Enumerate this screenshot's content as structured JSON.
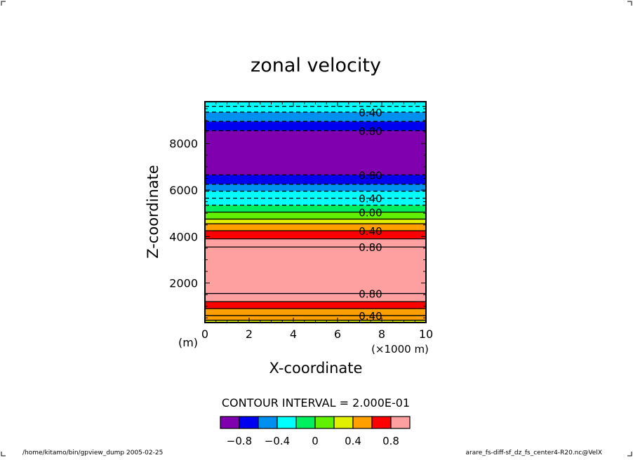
{
  "chart_data": {
    "type": "contour",
    "title": "zonal velocity",
    "xlabel": "X-coordinate",
    "ylabel": "Z-coordinate",
    "x_unit_label": "(m)",
    "x_scale_label": "(×1000 m)",
    "xlim": [
      0,
      10
    ],
    "ylim": [
      300,
      9800
    ],
    "xticks": [
      0,
      2,
      4,
      6,
      8,
      10
    ],
    "xtick_labels": [
      "0",
      "2",
      "4",
      "6",
      "8",
      "10"
    ],
    "yticks": [
      2000,
      4000,
      6000,
      8000
    ],
    "ytick_labels": [
      "2000",
      "4000",
      "6000",
      "8000"
    ],
    "contour_interval_text": "CONTOUR INTERVAL = 2.000E-01",
    "bands": [
      {
        "z0": 300,
        "z1": 400,
        "value": 0.3
      },
      {
        "z0": 400,
        "z1": 600,
        "value": 0.5
      },
      {
        "z0": 600,
        "z1": 900,
        "value": 0.5
      },
      {
        "z0": 900,
        "z1": 1200,
        "value": 0.7
      },
      {
        "z0": 1200,
        "z1": 1550,
        "value": 0.8
      },
      {
        "z0": 1550,
        "z1": 3550,
        "value": 0.9
      },
      {
        "z0": 3550,
        "z1": 3900,
        "value": 0.8
      },
      {
        "z0": 3900,
        "z1": 4250,
        "value": 0.7
      },
      {
        "z0": 4250,
        "z1": 4550,
        "value": 0.5
      },
      {
        "z0": 4550,
        "z1": 4750,
        "value": 0.3
      },
      {
        "z0": 4750,
        "z1": 5050,
        "value": 0.1
      },
      {
        "z0": 5050,
        "z1": 5350,
        "value": -0.1
      },
      {
        "z0": 5350,
        "z1": 5650,
        "value": -0.3
      },
      {
        "z0": 5650,
        "z1": 5950,
        "value": -0.4
      },
      {
        "z0": 5950,
        "z1": 6250,
        "value": -0.5
      },
      {
        "z0": 6250,
        "z1": 6650,
        "value": -0.7
      },
      {
        "z0": 6650,
        "z1": 8550,
        "value": -0.9
      },
      {
        "z0": 8550,
        "z1": 8950,
        "value": -0.7
      },
      {
        "z0": 8950,
        "z1": 9350,
        "value": -0.5
      },
      {
        "z0": 9350,
        "z1": 9800,
        "value": -0.3
      }
    ],
    "contour_lines": [
      {
        "z": 400,
        "dashed": false
      },
      {
        "z": 600,
        "dashed": false,
        "label": "0.40"
      },
      {
        "z": 900,
        "dashed": false
      },
      {
        "z": 1200,
        "dashed": false
      },
      {
        "z": 1550,
        "dashed": false,
        "label": "0.80"
      },
      {
        "z": 3550,
        "dashed": false,
        "label": "0.80"
      },
      {
        "z": 3900,
        "dashed": false
      },
      {
        "z": 4250,
        "dashed": false,
        "label": "0.40"
      },
      {
        "z": 4550,
        "dashed": false
      },
      {
        "z": 4750,
        "dashed": false
      },
      {
        "z": 5050,
        "dashed": false,
        "label": "0.00"
      },
      {
        "z": 5350,
        "dashed": true
      },
      {
        "z": 5650,
        "dashed": true,
        "label": "0.40"
      },
      {
        "z": 5950,
        "dashed": true
      },
      {
        "z": 6250,
        "dashed": true
      },
      {
        "z": 6650,
        "dashed": true,
        "label": "0.80"
      },
      {
        "z": 8550,
        "dashed": true,
        "label": "0.80"
      },
      {
        "z": 8950,
        "dashed": true
      },
      {
        "z": 9350,
        "dashed": true,
        "label": "0.40"
      },
      {
        "z": 9600,
        "dashed": true
      }
    ],
    "colorbar": {
      "bins": [
        {
          "range": [
            -1.0,
            -0.8
          ],
          "color": "#8000b0"
        },
        {
          "range": [
            -0.8,
            -0.6
          ],
          "color": "#0000f0"
        },
        {
          "range": [
            -0.6,
            -0.4
          ],
          "color": "#0090f0"
        },
        {
          "range": [
            -0.4,
            -0.2
          ],
          "color": "#00ffff"
        },
        {
          "range": [
            -0.2,
            0.0
          ],
          "color": "#00f060"
        },
        {
          "range": [
            0.0,
            0.2
          ],
          "color": "#60f000"
        },
        {
          "range": [
            0.2,
            0.4
          ],
          "color": "#e0f000"
        },
        {
          "range": [
            0.4,
            0.6
          ],
          "color": "#ffa000"
        },
        {
          "range": [
            0.6,
            0.8
          ],
          "color": "#ff0000"
        },
        {
          "range": [
            0.8,
            1.0
          ],
          "color": "#ffa0a0"
        }
      ],
      "ticks": [
        -0.8,
        -0.4,
        0,
        0.4,
        0.8
      ],
      "tick_labels": [
        "−0.8",
        "−0.4",
        "0",
        "0.4",
        "0.8"
      ]
    }
  },
  "footer": {
    "left": "/home/kitamo/bin/gpview_dump  2005-02-25",
    "right": "arare_fs-diff-sf_dz_fs_center4-R20.nc@VelX"
  }
}
